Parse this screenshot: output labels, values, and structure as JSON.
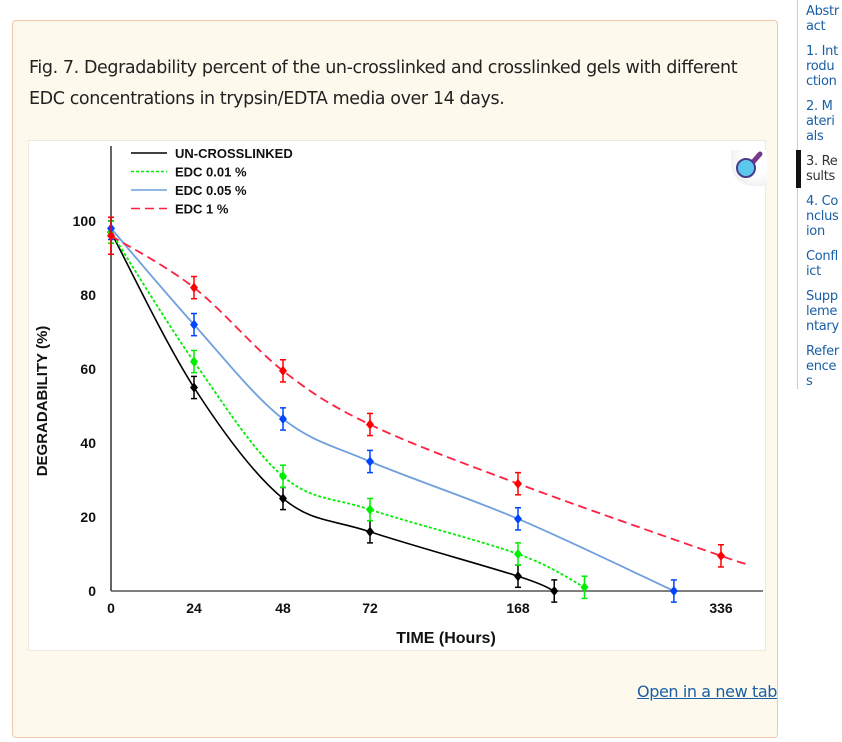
{
  "sidebar": {
    "items": [
      {
        "label": "Abstract",
        "active": false
      },
      {
        "label": "1. Introduction",
        "active": false
      },
      {
        "label": "2. Materials",
        "active": false
      },
      {
        "label": "3. Results",
        "active": true
      },
      {
        "label": "4. Conclusion",
        "active": false
      },
      {
        "label": "Conflict",
        "active": false
      },
      {
        "label": "Supplementary",
        "active": false
      },
      {
        "label": "References",
        "active": false
      }
    ]
  },
  "figure": {
    "caption": "Fig. 7. Degradability percent of the un-crosslinked and crosslinked gels with different EDC concentrations in trypsin/EDTA media over 14 days.",
    "open_link": "Open in a new tab",
    "zoom_icon": "magnifier-icon"
  },
  "chart_data": {
    "type": "line",
    "title": "",
    "xlabel": "TIME (Hours)",
    "ylabel": "DEGRADABILITY (%)",
    "x_ticks": [
      0,
      24,
      48,
      72,
      168,
      336
    ],
    "x_tick_labels": [
      "0",
      "24",
      "48",
      "72",
      "168",
      "336"
    ],
    "x_scale": "non-uniform (tick-spaced)",
    "y_ticks": [
      0,
      20,
      40,
      60,
      80,
      100
    ],
    "y_tick_labels": [
      "0",
      "20",
      "40",
      "60",
      "80",
      "100"
    ],
    "ylim": [
      0,
      100
    ],
    "grid": false,
    "legend": "top-left",
    "error_bars": true,
    "series": [
      {
        "name": "UN-CROSSLINKED",
        "color": "#000000",
        "style": "solid",
        "x": [
          0,
          24,
          48,
          72,
          168,
          198
        ],
        "y": [
          97,
          55,
          25,
          16,
          4,
          0
        ],
        "err": [
          3,
          3,
          3,
          3,
          3,
          3
        ]
      },
      {
        "name": "EDC 0.01 %",
        "color": "#00ee00",
        "style": "dotted",
        "x": [
          0,
          24,
          48,
          72,
          168,
          223
        ],
        "y": [
          97,
          62,
          31,
          22,
          10,
          1
        ],
        "err": [
          3,
          3,
          3,
          3,
          3,
          3
        ]
      },
      {
        "name": "EDC 0.05 %",
        "color": "#6f9fdc",
        "point_color": "#0044ff",
        "style": "solid",
        "x": [
          0,
          24,
          48,
          72,
          168,
          297
        ],
        "y": [
          98,
          72,
          46.5,
          35,
          19.5,
          0
        ],
        "err": [
          3,
          3,
          3,
          3,
          3,
          3
        ]
      },
      {
        "name": "EDC 1 %",
        "color": "#ff2040",
        "point_color": "#ff0000",
        "style": "dashed",
        "x": [
          0,
          24,
          48,
          72,
          168,
          336
        ],
        "y": [
          96,
          82,
          59.5,
          45,
          29,
          9.5
        ],
        "err": [
          5,
          3,
          3,
          3,
          3,
          3
        ]
      }
    ]
  }
}
